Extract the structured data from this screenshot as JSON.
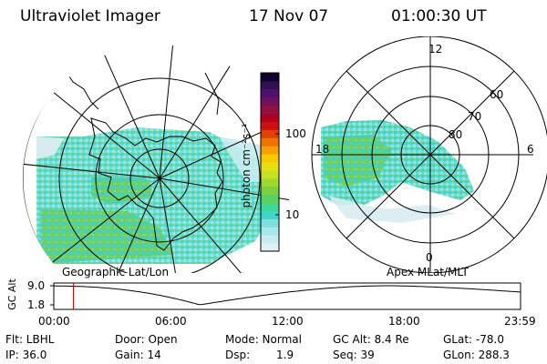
{
  "header": {
    "title": "Ultraviolet Imager",
    "date": "17 Nov 07",
    "time": "01:00:30 UT"
  },
  "geo_panel": {
    "label": "Geographic Lat/Lon"
  },
  "mag_panel": {
    "label": "Apex MLat/MLT",
    "mlt_labels": [
      "12",
      "6",
      "0",
      "18"
    ],
    "lat_labels": [
      "60",
      "70",
      "80"
    ]
  },
  "colorbar": {
    "unit_label": "photon cm⁻²s⁻¹",
    "tick_labels": [
      "100",
      "10"
    ],
    "colors": [
      "#e0f0f4",
      "#c8ecef",
      "#a8e8ea",
      "#7fe0dd",
      "#3fd6c8",
      "#40d890",
      "#5ad060",
      "#7ad040",
      "#a0d830",
      "#c8e020",
      "#e8e010",
      "#f8c800",
      "#f8a000",
      "#f07000",
      "#e04000",
      "#d01010",
      "#b00020",
      "#901040",
      "#701060",
      "#501070",
      "#301050",
      "#100030"
    ]
  },
  "alt_plot": {
    "ylabel": "GC Alt",
    "y_ticks": [
      "9.0",
      "1.8"
    ],
    "x_ticks": [
      "00:00",
      "06:00",
      "12:00",
      "18:00",
      "23:59"
    ],
    "ylim": [
      1.8,
      9.0
    ],
    "current_time_hours": 1.008
  },
  "info": {
    "filter": "Flt: LBHL",
    "ip": "IP: 36.0",
    "door": "Door: Open",
    "gain": "Gain: 14",
    "mode": "Mode: Normal",
    "dsp_label": "Dsp:",
    "dsp_value": "1.9",
    "gc_alt": "GC Alt: 8.4 Re",
    "seq": "Seq: 39",
    "glat": "GLat: -78.0",
    "glon": "GLon: 288.3"
  }
}
